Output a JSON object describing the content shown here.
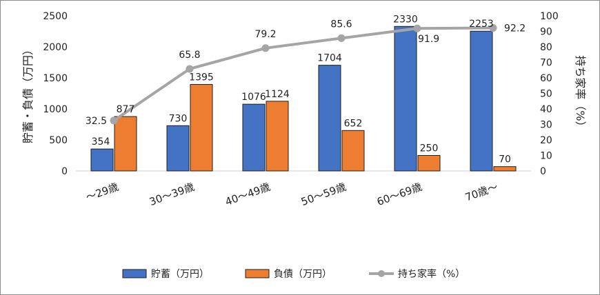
{
  "chart_data": {
    "type": "bar",
    "categories": [
      "～29歳",
      "30～39歳",
      "40～49歳",
      "50～59歳",
      "60～69歳",
      "70歳～"
    ],
    "series": [
      {
        "name": "貯蓄（万円）",
        "values": [
          354,
          730,
          1076,
          1704,
          2330,
          2253
        ],
        "color": "#4472C4",
        "axis": "left",
        "kind": "bar"
      },
      {
        "name": "負債（万円）",
        "values": [
          877,
          1395,
          1124,
          652,
          250,
          70
        ],
        "color": "#ED7D31",
        "axis": "left",
        "kind": "bar"
      },
      {
        "name": "持ち家率（%）",
        "values": [
          32.5,
          65.8,
          79.2,
          85.6,
          91.9,
          92.2
        ],
        "color": "#A5A5A5",
        "axis": "right",
        "kind": "line"
      }
    ],
    "ylabel": "貯蓄・負債（万円）",
    "y2label": "持ち家率（%）",
    "ylim": [
      0,
      2500
    ],
    "y2lim": [
      0,
      100
    ],
    "yticks": [
      "0",
      "500",
      "1000",
      "1500",
      "2000",
      "2500"
    ],
    "y2ticks": [
      "0",
      "10",
      "20",
      "30",
      "40",
      "50",
      "60",
      "70",
      "80",
      "90",
      "100"
    ],
    "grid": false,
    "legend": "bottom"
  }
}
